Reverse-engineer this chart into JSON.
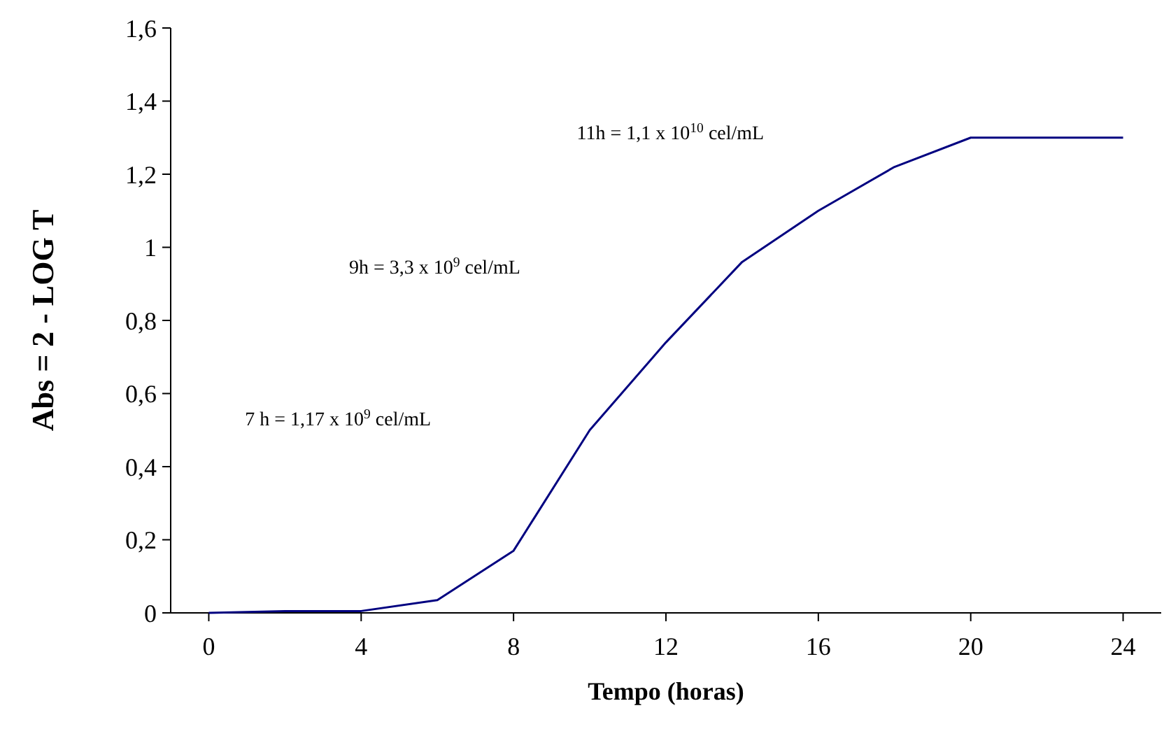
{
  "chart_data": {
    "type": "line",
    "xlabel": "Tempo (horas)",
    "ylabel": "Abs = 2 - LOG T",
    "x": [
      0,
      2,
      4,
      6,
      8,
      10,
      12,
      14,
      16,
      18,
      20,
      22,
      24
    ],
    "series": [
      {
        "color": "#000080",
        "values": [
          0,
          0.005,
          0.005,
          0.035,
          0.17,
          0.5,
          0.74,
          0.96,
          1.1,
          1.22,
          1.3,
          1.3,
          1.3
        ]
      }
    ],
    "xlim": [
      -1,
      25
    ],
    "xticks": [
      0,
      4,
      8,
      12,
      16,
      20,
      24
    ],
    "ylim": [
      0,
      1.6
    ],
    "yticks": [
      0,
      {
        "value": 0.2,
        "label": "0,2"
      },
      {
        "value": 0.4,
        "label": "0,4"
      },
      {
        "value": 0.6,
        "label": "0,6"
      },
      {
        "value": 0.8,
        "label": "0,8"
      },
      1,
      {
        "value": 1.2,
        "label": "1,2"
      },
      {
        "value": 1.4,
        "label": "1,4"
      },
      {
        "value": 1.6,
        "label": "1,6"
      }
    ],
    "grid": false,
    "marker": "none",
    "line_style": "solid",
    "annotations": [
      "7 h = 1,17 x 10$^{9}$ cel/mL",
      "9h = 3,3 x 10$^{9}$ cel/mL",
      "11h = 1,1 x 10$^{10}$ cel/mL"
    ]
  }
}
